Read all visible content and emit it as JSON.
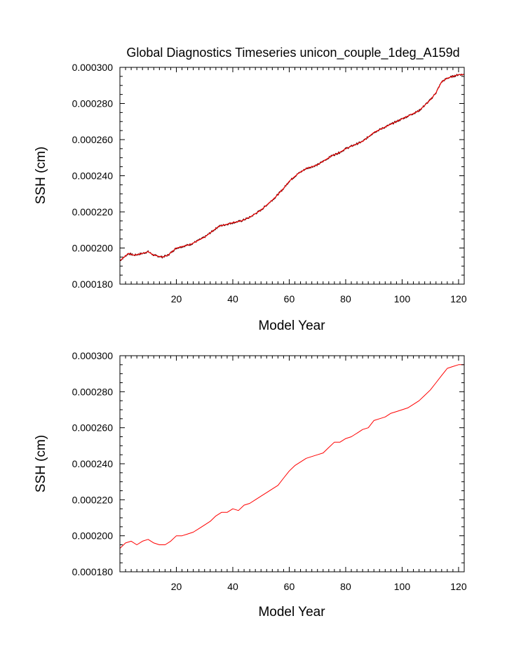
{
  "title": "Global Diagnostics Timeseries unicon_couple_1deg_A159d",
  "colors": {
    "raw_line": "#5a0a0a",
    "smooth_line": "#ff0000",
    "axes": "#000000"
  },
  "chart_data": [
    {
      "type": "line",
      "xlabel": "Model Year",
      "ylabel": "SSH (cm)",
      "xlim": [
        0,
        122
      ],
      "ylim": [
        0.00018,
        0.0003
      ],
      "xticks": [
        20,
        40,
        60,
        80,
        100,
        120
      ],
      "yticks": [
        "0.000180",
        "0.000200",
        "0.000220",
        "0.000240",
        "0.000260",
        "0.000280",
        "0.000300"
      ],
      "grid": false,
      "series": [
        {
          "color": "#5a0a0a",
          "noisy": true,
          "x": [
            0,
            3,
            5,
            8,
            10,
            12,
            15,
            17,
            20,
            25,
            30,
            35,
            40,
            43,
            46,
            50,
            55,
            58,
            60,
            63,
            66,
            70,
            75,
            78,
            80,
            83,
            86,
            90,
            94,
            98,
            102,
            106,
            110,
            112,
            114,
            116,
            118,
            120,
            122
          ],
          "y": [
            0.000193,
            0.000197,
            0.000196,
            0.000197,
            0.000198,
            0.000196,
            0.000195,
            0.000196,
            0.0002,
            0.000202,
            0.000206,
            0.000212,
            0.000214,
            0.000215,
            0.000217,
            0.000221,
            0.000228,
            0.000233,
            0.000237,
            0.000241,
            0.000244,
            0.000246,
            0.000251,
            0.000253,
            0.000255,
            0.000257,
            0.000259,
            0.000264,
            0.000267,
            0.00027,
            0.000273,
            0.000276,
            0.000282,
            0.000286,
            0.000292,
            0.000294,
            0.000295,
            0.000296,
            0.000296
          ]
        },
        {
          "color": "#ff0000",
          "noisy": false,
          "x": [
            0,
            3,
            5,
            8,
            10,
            12,
            15,
            17,
            20,
            25,
            30,
            35,
            40,
            43,
            46,
            50,
            55,
            58,
            60,
            63,
            66,
            70,
            75,
            78,
            80,
            83,
            86,
            90,
            94,
            98,
            102,
            106,
            110,
            112,
            114,
            116,
            118,
            120,
            122
          ],
          "y": [
            0.000193,
            0.000197,
            0.000196,
            0.000197,
            0.000198,
            0.000196,
            0.000195,
            0.000196,
            0.0002,
            0.000202,
            0.000206,
            0.000212,
            0.000214,
            0.000215,
            0.000217,
            0.000221,
            0.000228,
            0.000233,
            0.000237,
            0.000241,
            0.000244,
            0.000246,
            0.000251,
            0.000253,
            0.000255,
            0.000257,
            0.000259,
            0.000264,
            0.000267,
            0.00027,
            0.000273,
            0.000276,
            0.000282,
            0.000286,
            0.000292,
            0.000294,
            0.000295,
            0.000296,
            0.000296
          ]
        }
      ]
    },
    {
      "type": "line",
      "xlabel": "Model Year",
      "ylabel": "SSH (cm)",
      "xlim": [
        0,
        122
      ],
      "ylim": [
        0.00018,
        0.0003
      ],
      "xticks": [
        20,
        40,
        60,
        80,
        100,
        120
      ],
      "yticks": [
        "0.000180",
        "0.000200",
        "0.000220",
        "0.000240",
        "0.000260",
        "0.000280",
        "0.000300"
      ],
      "grid": false,
      "series": [
        {
          "color": "#ff0000",
          "noisy": false,
          "x": [
            0,
            2,
            4,
            6,
            8,
            10,
            12,
            14,
            16,
            18,
            20,
            22,
            24,
            26,
            28,
            30,
            32,
            34,
            36,
            38,
            40,
            42,
            44,
            46,
            48,
            50,
            52,
            54,
            56,
            58,
            60,
            62,
            64,
            66,
            68,
            70,
            72,
            74,
            76,
            78,
            80,
            82,
            84,
            86,
            88,
            90,
            92,
            94,
            96,
            98,
            100,
            102,
            104,
            106,
            108,
            110,
            112,
            114,
            116,
            118,
            120,
            122
          ],
          "y": [
            0.000193,
            0.000196,
            0.000197,
            0.000195,
            0.000197,
            0.000198,
            0.000196,
            0.000195,
            0.000195,
            0.000197,
            0.0002,
            0.0002,
            0.000201,
            0.000202,
            0.000204,
            0.000206,
            0.000208,
            0.000211,
            0.000213,
            0.000213,
            0.000215,
            0.000214,
            0.000217,
            0.000218,
            0.00022,
            0.000222,
            0.000224,
            0.000226,
            0.000228,
            0.000232,
            0.000236,
            0.000239,
            0.000241,
            0.000243,
            0.000244,
            0.000245,
            0.000246,
            0.000249,
            0.000252,
            0.000252,
            0.000254,
            0.000255,
            0.000257,
            0.000259,
            0.00026,
            0.000264,
            0.000265,
            0.000266,
            0.000268,
            0.000269,
            0.00027,
            0.000271,
            0.000273,
            0.000275,
            0.000278,
            0.000281,
            0.000285,
            0.000289,
            0.000293,
            0.000294,
            0.000295,
            0.000295
          ]
        }
      ]
    }
  ]
}
